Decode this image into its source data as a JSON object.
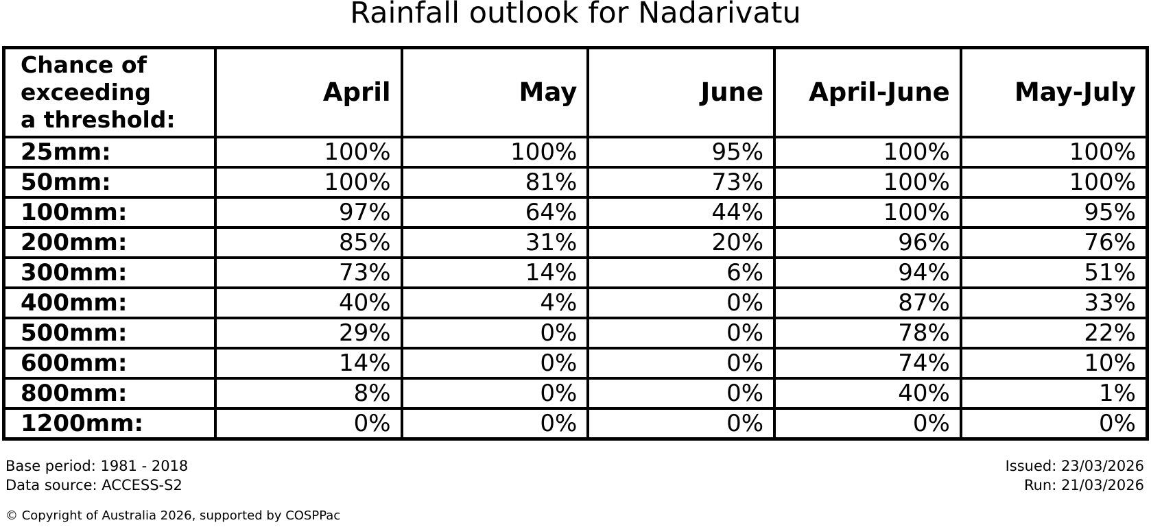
{
  "title": "Rainfall outlook for Nadarivatu",
  "table": {
    "corner": [
      "Chance of",
      "exceeding",
      "a threshold:"
    ],
    "columns": [
      "April",
      "May",
      "June",
      "April-June",
      "May-July"
    ],
    "rows": [
      {
        "label": "25mm:",
        "values": [
          "100%",
          "100%",
          "95%",
          "100%",
          "100%"
        ]
      },
      {
        "label": "50mm:",
        "values": [
          "100%",
          "81%",
          "73%",
          "100%",
          "100%"
        ]
      },
      {
        "label": "100mm:",
        "values": [
          "97%",
          "64%",
          "44%",
          "100%",
          "95%"
        ]
      },
      {
        "label": "200mm:",
        "values": [
          "85%",
          "31%",
          "20%",
          "96%",
          "76%"
        ]
      },
      {
        "label": "300mm:",
        "values": [
          "73%",
          "14%",
          "6%",
          "94%",
          "51%"
        ]
      },
      {
        "label": "400mm:",
        "values": [
          "40%",
          "4%",
          "0%",
          "87%",
          "33%"
        ]
      },
      {
        "label": "500mm:",
        "values": [
          "29%",
          "0%",
          "0%",
          "78%",
          "22%"
        ]
      },
      {
        "label": "600mm:",
        "values": [
          "14%",
          "0%",
          "0%",
          "74%",
          "10%"
        ]
      },
      {
        "label": "800mm:",
        "values": [
          "8%",
          "0%",
          "0%",
          "40%",
          "1%"
        ]
      },
      {
        "label": "1200mm:",
        "values": [
          "0%",
          "0%",
          "0%",
          "0%",
          "0%"
        ]
      }
    ]
  },
  "footer": {
    "base_period": "Base period: 1981 - 2018",
    "data_source": "Data source: ACCESS-S2",
    "issued": "Issued: 23/03/2026",
    "run": "Run: 21/03/2026",
    "copyright": "© Copyright of Australia 2026, supported by COSPPac"
  },
  "colors": {
    "text": "#000000",
    "background": "#ffffff",
    "border": "#000000"
  },
  "chart_data": {
    "type": "table",
    "title": "Rainfall outlook for Nadarivatu",
    "row_header": "Chance of exceeding a threshold:",
    "columns": [
      "April",
      "May",
      "June",
      "April-June",
      "May-July"
    ],
    "thresholds_mm": [
      25,
      50,
      100,
      200,
      300,
      400,
      500,
      600,
      800,
      1200
    ],
    "probabilities_percent": [
      [
        100,
        100,
        95,
        100,
        100
      ],
      [
        100,
        81,
        73,
        100,
        100
      ],
      [
        97,
        64,
        44,
        100,
        95
      ],
      [
        85,
        31,
        20,
        96,
        76
      ],
      [
        73,
        14,
        6,
        94,
        51
      ],
      [
        40,
        4,
        0,
        87,
        33
      ],
      [
        29,
        0,
        0,
        78,
        22
      ],
      [
        14,
        0,
        0,
        74,
        10
      ],
      [
        8,
        0,
        0,
        40,
        1
      ],
      [
        0,
        0,
        0,
        0,
        0
      ]
    ]
  }
}
